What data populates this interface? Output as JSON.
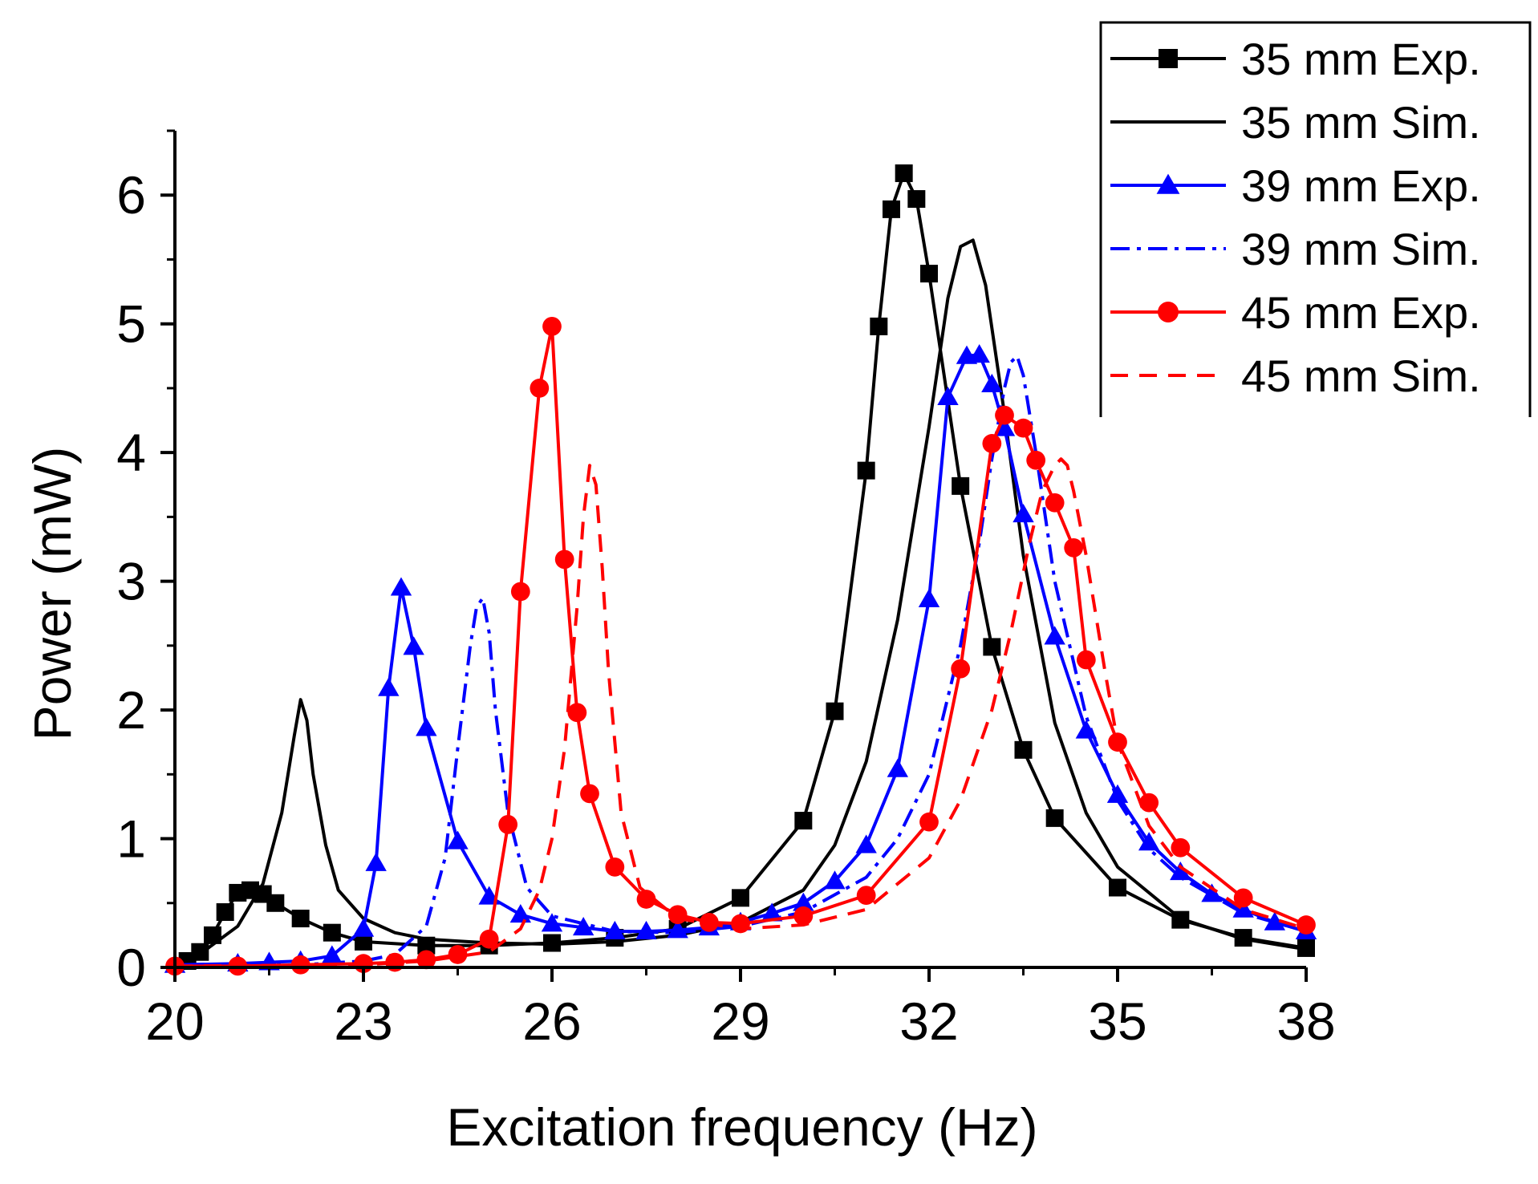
{
  "chart_data": {
    "type": "line",
    "title": "",
    "xlabel": "Excitation frequency (Hz)",
    "ylabel": "Power (mW)",
    "xlim": [
      20,
      38
    ],
    "ylim": [
      0,
      6.5
    ],
    "xticks": [
      20,
      23,
      26,
      29,
      32,
      35,
      38
    ],
    "yticks": [
      0,
      1,
      2,
      3,
      4,
      5,
      6
    ],
    "xtick_labels": [
      "20",
      "23",
      "26",
      "29",
      "32",
      "35",
      "38"
    ],
    "ytick_labels": [
      "0",
      "1",
      "2",
      "3",
      "4",
      "5",
      "6"
    ],
    "grid": false,
    "legend_position": "top-right",
    "series": [
      {
        "name": "35 mm Exp.",
        "color": "#000000",
        "dash": "solid",
        "marker": "square",
        "x": [
          20.2,
          20.4,
          20.6,
          20.8,
          21.0,
          21.2,
          21.4,
          21.6,
          22.0,
          22.5,
          23.0,
          24.0,
          25.0,
          26.0,
          27.0,
          28.0,
          29.0,
          30.0,
          30.5,
          31.0,
          31.2,
          31.4,
          31.6,
          31.8,
          32.0,
          32.5,
          33.0,
          33.5,
          34.0,
          35.0,
          36.0,
          37.0,
          38.0
        ],
        "y": [
          0.05,
          0.12,
          0.25,
          0.43,
          0.58,
          0.6,
          0.57,
          0.5,
          0.38,
          0.27,
          0.2,
          0.17,
          0.17,
          0.19,
          0.23,
          0.3,
          0.54,
          1.14,
          1.99,
          3.86,
          4.98,
          5.89,
          6.17,
          5.97,
          5.39,
          3.74,
          2.49,
          1.69,
          1.16,
          0.62,
          0.37,
          0.23,
          0.15
        ]
      },
      {
        "name": "35 mm Sim.",
        "color": "#000000",
        "dash": "solid",
        "marker": "none",
        "x": [
          20.0,
          20.5,
          21.0,
          21.4,
          21.7,
          21.9,
          22.0,
          22.1,
          22.2,
          22.4,
          22.6,
          23.0,
          23.5,
          24.0,
          25.0,
          26.0,
          27.0,
          28.0,
          29.0,
          30.0,
          30.5,
          31.0,
          31.5,
          32.0,
          32.3,
          32.5,
          32.7,
          32.9,
          33.2,
          33.5,
          34.0,
          34.5,
          35.0,
          36.0,
          37.0,
          38.0
        ],
        "y": [
          0.05,
          0.14,
          0.32,
          0.65,
          1.2,
          1.8,
          2.08,
          1.92,
          1.5,
          0.95,
          0.6,
          0.38,
          0.27,
          0.22,
          0.19,
          0.18,
          0.2,
          0.25,
          0.35,
          0.6,
          0.95,
          1.6,
          2.7,
          4.2,
          5.2,
          5.6,
          5.65,
          5.3,
          4.3,
          3.2,
          1.9,
          1.2,
          0.78,
          0.38,
          0.22,
          0.14
        ]
      },
      {
        "name": "39 mm Exp.",
        "color": "#0000ff",
        "dash": "solid",
        "marker": "triangle",
        "x": [
          20.0,
          21.0,
          21.5,
          22.0,
          22.5,
          23.0,
          23.2,
          23.4,
          23.6,
          23.8,
          24.0,
          24.5,
          25.0,
          25.5,
          26.0,
          26.5,
          27.0,
          27.5,
          28.0,
          28.5,
          29.0,
          29.5,
          30.0,
          30.5,
          31.0,
          31.5,
          32.0,
          32.3,
          32.6,
          32.8,
          33.0,
          33.2,
          33.5,
          34.0,
          34.5,
          35.0,
          35.5,
          36.0,
          36.5,
          37.0,
          37.5,
          38.0
        ],
        "y": [
          0.02,
          0.03,
          0.04,
          0.05,
          0.09,
          0.3,
          0.81,
          2.17,
          2.95,
          2.49,
          1.86,
          0.98,
          0.55,
          0.41,
          0.34,
          0.31,
          0.28,
          0.28,
          0.29,
          0.31,
          0.35,
          0.42,
          0.5,
          0.67,
          0.95,
          1.54,
          2.86,
          4.43,
          4.75,
          4.76,
          4.53,
          4.19,
          3.52,
          2.57,
          1.84,
          1.34,
          0.97,
          0.74,
          0.57,
          0.45,
          0.35,
          0.28
        ]
      },
      {
        "name": "39 mm Sim.",
        "color": "#0000ff",
        "dash": "dashdot",
        "marker": "none",
        "x": [
          20.0,
          22.0,
          23.0,
          23.5,
          24.0,
          24.3,
          24.5,
          24.7,
          24.8,
          24.9,
          25.0,
          25.1,
          25.3,
          25.6,
          26.0,
          27.0,
          28.0,
          29.0,
          30.0,
          31.0,
          31.5,
          32.0,
          32.5,
          32.8,
          33.0,
          33.2,
          33.3,
          33.4,
          33.5,
          33.7,
          34.0,
          34.5,
          35.0,
          35.5,
          36.0,
          37.0,
          38.0
        ],
        "y": [
          0.01,
          0.02,
          0.05,
          0.1,
          0.32,
          0.85,
          1.7,
          2.5,
          2.8,
          2.87,
          2.6,
          2.0,
          1.2,
          0.62,
          0.4,
          0.28,
          0.27,
          0.32,
          0.43,
          0.7,
          1.0,
          1.5,
          2.5,
          3.3,
          3.95,
          4.5,
          4.7,
          4.75,
          4.6,
          4.0,
          3.0,
          1.95,
          1.3,
          0.92,
          0.7,
          0.42,
          0.28
        ]
      },
      {
        "name": "45 mm Exp.",
        "color": "#ff0000",
        "dash": "solid",
        "marker": "circle",
        "x": [
          20.0,
          21.0,
          22.0,
          23.0,
          23.5,
          24.0,
          24.5,
          25.0,
          25.3,
          25.5,
          25.8,
          26.0,
          26.2,
          26.4,
          26.6,
          27.0,
          27.5,
          28.0,
          28.5,
          29.0,
          30.0,
          31.0,
          32.0,
          32.5,
          33.0,
          33.2,
          33.5,
          33.7,
          34.0,
          34.3,
          34.5,
          35.0,
          35.5,
          36.0,
          37.0,
          38.0
        ],
        "y": [
          0.01,
          0.01,
          0.02,
          0.03,
          0.04,
          0.06,
          0.1,
          0.22,
          1.11,
          2.92,
          4.5,
          4.98,
          3.17,
          1.98,
          1.35,
          0.78,
          0.53,
          0.41,
          0.35,
          0.34,
          0.4,
          0.56,
          1.13,
          2.32,
          4.07,
          4.29,
          4.19,
          3.94,
          3.61,
          3.26,
          2.39,
          1.75,
          1.28,
          0.93,
          0.54,
          0.33
        ]
      },
      {
        "name": "45 mm Sim.",
        "color": "#ff0000",
        "dash": "dashed",
        "marker": "none",
        "x": [
          20.0,
          23.0,
          24.0,
          25.0,
          25.5,
          25.8,
          26.0,
          26.2,
          26.4,
          26.5,
          26.6,
          26.7,
          26.8,
          26.9,
          27.1,
          27.4,
          28.0,
          29.0,
          30.0,
          31.0,
          32.0,
          32.5,
          33.0,
          33.3,
          33.6,
          33.8,
          34.0,
          34.1,
          34.2,
          34.3,
          34.5,
          34.8,
          35.0,
          35.5,
          36.0,
          37.0,
          38.0
        ],
        "y": [
          0.01,
          0.02,
          0.05,
          0.12,
          0.3,
          0.6,
          1.0,
          1.7,
          2.8,
          3.5,
          3.9,
          3.75,
          3.1,
          2.3,
          1.2,
          0.62,
          0.38,
          0.3,
          0.33,
          0.45,
          0.85,
          1.3,
          2.0,
          2.6,
          3.3,
          3.7,
          3.9,
          3.95,
          3.9,
          3.7,
          3.2,
          2.3,
          1.75,
          1.1,
          0.78,
          0.45,
          0.3
        ]
      }
    ]
  }
}
